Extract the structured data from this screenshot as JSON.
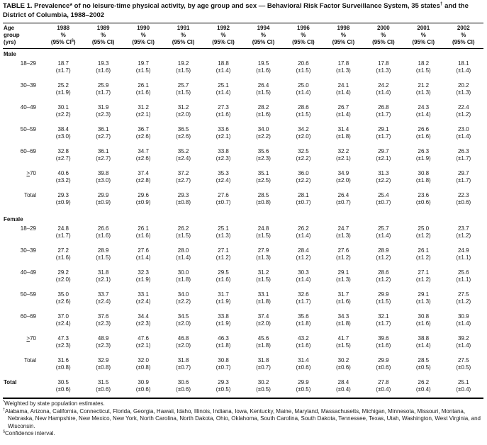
{
  "title": {
    "part1": "TABLE 1. Prevalence* of no leisure-time physical activity, by age group and sex — Behavioral Risk Factor Surveillance System, 35 states",
    "dagger": "†",
    "part2": " and the District of Columbia, 1988–2002"
  },
  "columns": {
    "age_header": [
      "Age",
      "group",
      "(yrs)"
    ],
    "years": [
      "1988",
      "1989",
      "1990",
      "1991",
      "1992",
      "1994",
      "1996",
      "1998",
      "2000",
      "2001",
      "2002"
    ],
    "pct_label": "%",
    "ci_label": "(95% CI)",
    "ci_first_prefix": "(95% CI",
    "ci_first_sup": "§",
    "ci_first_suffix": ")"
  },
  "sections": [
    {
      "label": "Male",
      "rows": [
        {
          "label": "18–29",
          "values": [
            "18.7",
            "19.3",
            "19.7",
            "19.2",
            "18.8",
            "19.5",
            "20.6",
            "17.8",
            "17.8",
            "18.2",
            "18.1"
          ],
          "cis": [
            "(±1.7)",
            "(±1.6)",
            "(±1.5)",
            "(±1.5)",
            "(±1.4)",
            "(±1.6)",
            "(±1.5)",
            "(±1.3)",
            "(±1.3)",
            "(±1.5)",
            "(±1.4)"
          ]
        },
        {
          "label": "30–39",
          "values": [
            "25.2",
            "25.9",
            "26.1",
            "25.7",
            "25.1",
            "26.4",
            "25.0",
            "24.1",
            "24.2",
            "21.2",
            "20.2"
          ],
          "cis": [
            "(±1.9)",
            "(±1.7)",
            "(±1.6)",
            "(±1.5)",
            "(±1.4)",
            "(±1.5)",
            "(±1.4)",
            "(±1.4)",
            "(±1.4)",
            "(±1.3)",
            "(±1.3)"
          ]
        },
        {
          "label": "40–49",
          "values": [
            "30.1",
            "31.9",
            "31.2",
            "31.2",
            "27.3",
            "28.2",
            "28.6",
            "26.7",
            "26.8",
            "24.3",
            "22.4"
          ],
          "cis": [
            "(±2.2)",
            "(±2.3)",
            "(±2.1)",
            "(±2.0)",
            "(±1.6)",
            "(±1.6)",
            "(±1.5)",
            "(±1.4)",
            "(±1.7)",
            "(±1.4)",
            "(±1.2)"
          ]
        },
        {
          "label": "50–59",
          "values": [
            "38.4",
            "36.1",
            "36.7",
            "36.5",
            "33.6",
            "34.0",
            "34.2",
            "31.4",
            "29.1",
            "26.6",
            "23.0"
          ],
          "cis": [
            "(±3.0)",
            "(±2.7)",
            "(±2.6)",
            "(±2.6)",
            "(±2.1)",
            "(±2.2)",
            "(±2.0)",
            "(±1.8)",
            "(±1.7)",
            "(±1.6)",
            "(±1.4)"
          ]
        },
        {
          "label": "60–69",
          "values": [
            "32.8",
            "36.1",
            "34.7",
            "35.2",
            "33.8",
            "35.6",
            "32.5",
            "32.2",
            "29.7",
            "26.3",
            "26.3"
          ],
          "cis": [
            "(±2.7)",
            "(±2.7)",
            "(±2.6)",
            "(±2.4)",
            "(±2.3)",
            "(±2.3)",
            "(±2.2)",
            "(±2.1)",
            "(±2.1)",
            "(±1.9)",
            "(±1.7)"
          ]
        },
        {
          "label": ">70",
          "underline_first": true,
          "values": [
            "40.6",
            "39.8",
            "37.4",
            "37.2",
            "35.3",
            "35.1",
            "36.0",
            "34.9",
            "31.3",
            "30.8",
            "29.7"
          ],
          "cis": [
            "(±3.2)",
            "(±3.0)",
            "(±2.8)",
            "(±2.7)",
            "(±2.4)",
            "(±2.5)",
            "(±2.2)",
            "(±2.0)",
            "(±2.2)",
            "(±1.8)",
            "(±1.7)"
          ]
        },
        {
          "label": "Total",
          "is_total": true,
          "values": [
            "29.3",
            "29.9",
            "29.6",
            "29.3",
            "27.6",
            "28.5",
            "28.1",
            "26.4",
            "25.4",
            "23.6",
            "22.3"
          ],
          "cis": [
            "(±0.9)",
            "(±0.9)",
            "(±0.9)",
            "(±0.8)",
            "(±0.7)",
            "(±0.8)",
            "(±0.7)",
            "(±0.7)",
            "(±0.7)",
            "(±0.6)",
            "(±0.6)"
          ]
        }
      ]
    },
    {
      "label": "Female",
      "rows": [
        {
          "label": "18–29",
          "values": [
            "24.8",
            "26.6",
            "26.1",
            "26.2",
            "25.1",
            "24.8",
            "26.2",
            "24.7",
            "25.7",
            "25.0",
            "23.7"
          ],
          "cis": [
            "(±1.7)",
            "(±1.6)",
            "(±1.6)",
            "(±1.5)",
            "(±1.3)",
            "(±1.5)",
            "(±1.4)",
            "(±1.3)",
            "(±1.4)",
            "(±1.2)",
            "(±1.2)"
          ]
        },
        {
          "label": "30–39",
          "values": [
            "27.2",
            "28.9",
            "27.6",
            "28.0",
            "27.1",
            "27.9",
            "28.4",
            "27.6",
            "28.9",
            "26.1",
            "24.9"
          ],
          "cis": [
            "(±1.6)",
            "(±1.5)",
            "(±1.4)",
            "(±1.4)",
            "(±1.2)",
            "(±1.3)",
            "(±1.2)",
            "(±1.2)",
            "(±1.2)",
            "(±1.2)",
            "(±1.1)"
          ]
        },
        {
          "label": "40–49",
          "values": [
            "29.2",
            "31.8",
            "32.3",
            "30.0",
            "29.5",
            "31.2",
            "30.3",
            "29.1",
            "28.6",
            "27.1",
            "25.6"
          ],
          "cis": [
            "(±2.0)",
            "(±2.1)",
            "(±1.9)",
            "(±1.8)",
            "(±1.6)",
            "(±1.5)",
            "(±1.4)",
            "(±1.3)",
            "(±1.2)",
            "(±1.2)",
            "(±1.1)"
          ]
        },
        {
          "label": "50–59",
          "values": [
            "35.0",
            "33.7",
            "33.1",
            "34.0",
            "31.7",
            "33.1",
            "32.6",
            "31.7",
            "29.9",
            "29.1",
            "27.5"
          ],
          "cis": [
            "(±2.6)",
            "(±2.4)",
            "(±2.4)",
            "(±2.2)",
            "(±1.9)",
            "(±1.8)",
            "(±1.7)",
            "(±1.6)",
            "(±1.5)",
            "(±1.3)",
            "(±1.2)"
          ]
        },
        {
          "label": "60–69",
          "values": [
            "37.0",
            "37.6",
            "34.4",
            "34.5",
            "33.8",
            "37.4",
            "35.6",
            "34.3",
            "32.1",
            "30.8",
            "30.9"
          ],
          "cis": [
            "(±2.4)",
            "(±2.3)",
            "(±2.3)",
            "(±2.0)",
            "(±1.9)",
            "(±2.0)",
            "(±1.8)",
            "(±1.8)",
            "(±1.7)",
            "(±1.6)",
            "(±1.4)"
          ]
        },
        {
          "label": ">70",
          "underline_first": true,
          "values": [
            "47.3",
            "48.9",
            "47.6",
            "46.8",
            "46.3",
            "45.6",
            "43.2",
            "41.7",
            "39.6",
            "38.8",
            "39.2"
          ],
          "cis": [
            "(±2.3)",
            "(±2.3)",
            "(±2.1)",
            "(±2.0)",
            "(±1.8)",
            "(±1.8)",
            "(±1.6)",
            "(±1.5)",
            "(±1.6)",
            "(±1.4)",
            "(±1.4)"
          ]
        },
        {
          "label": "Total",
          "is_total": true,
          "values": [
            "31.6",
            "32.9",
            "32.0",
            "31.8",
            "30.8",
            "31.8",
            "31.4",
            "30.2",
            "29.9",
            "28.5",
            "27.5"
          ],
          "cis": [
            "(±0.8)",
            "(±0.8)",
            "(±0.8)",
            "(±0.7)",
            "(±0.7)",
            "(±0.7)",
            "(±0.6)",
            "(±0.6)",
            "(±0.6)",
            "(±0.5)",
            "(±0.5)"
          ]
        }
      ]
    }
  ],
  "grand_total": {
    "label": "Total",
    "values": [
      "30.5",
      "31.5",
      "30.9",
      "30.6",
      "29.3",
      "30.2",
      "29.9",
      "28.4",
      "27.8",
      "26.2",
      "25.1"
    ],
    "cis": [
      "(±0.6)",
      "(±0.6)",
      "(±0.6)",
      "(±0.6)",
      "(±0.5)",
      "(±0.5)",
      "(±0.5)",
      "(±0.4)",
      "(±0.4)",
      "(±0.4)",
      "(±0.4)"
    ]
  },
  "footnotes": [
    {
      "marker": "*",
      "text": "Weighted by state population estimates."
    },
    {
      "marker": "†",
      "text": "Alabama, Arizona, California, Connecticut, Florida, Georgia, Hawaii, Idaho, Illinois, Indiana, Iowa, Kentucky, Maine, Maryland, Massachusetts, Michigan, Minnesota, Missouri, Montana, Nebraska, New Hampshire, New Mexico, New York, North Carolina, North Dakota, Ohio, Oklahoma, South Carolina, South Dakota, Tennessee, Texas, Utah, Washington, West Virginia, and Wisconsin."
    },
    {
      "marker": "§",
      "text": "Confidence interval."
    }
  ]
}
